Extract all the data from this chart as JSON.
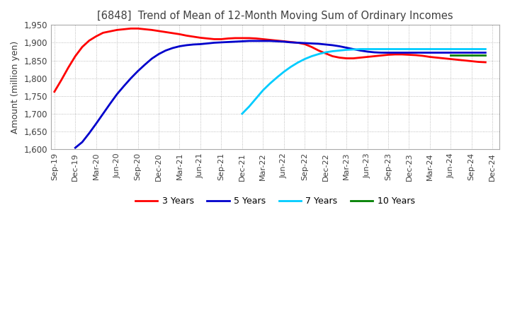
{
  "title": "[6848]  Trend of Mean of 12-Month Moving Sum of Ordinary Incomes",
  "ylabel": "Amount (million yen)",
  "ylim": [
    1600,
    1950
  ],
  "yticks": [
    1600,
    1650,
    1700,
    1750,
    1800,
    1850,
    1900,
    1950
  ],
  "background_color": "#ffffff",
  "grid_color": "#aaaaaa",
  "title_color": "#404040",
  "lines": {
    "3 Years": {
      "color": "#ff0000",
      "data_x": [
        0,
        1,
        2,
        3,
        4,
        5,
        6,
        7,
        8,
        9,
        10,
        11,
        12,
        13,
        14,
        15,
        16,
        17,
        18,
        19,
        20,
        21,
        22,
        23,
        24,
        25,
        26,
        27,
        28,
        29,
        30,
        31,
        32,
        33,
        34,
        35,
        36,
        37,
        38,
        39,
        40,
        41,
        42,
        43,
        44,
        45,
        46,
        47,
        48,
        49,
        50,
        51,
        52,
        53,
        54,
        55,
        56,
        57,
        58,
        59,
        60,
        61,
        62
      ],
      "data_y": [
        1762,
        1795,
        1830,
        1862,
        1888,
        1906,
        1918,
        1928,
        1932,
        1936,
        1938,
        1940,
        1940,
        1938,
        1936,
        1933,
        1930,
        1927,
        1924,
        1920,
        1917,
        1914,
        1912,
        1910,
        1910,
        1912,
        1913,
        1913,
        1913,
        1912,
        1910,
        1908,
        1906,
        1904,
        1902,
        1900,
        1896,
        1888,
        1878,
        1870,
        1862,
        1858,
        1856,
        1856,
        1858,
        1860,
        1862,
        1864,
        1866,
        1867,
        1867,
        1866,
        1865,
        1863,
        1860,
        1858,
        1856,
        1854,
        1852,
        1850,
        1848,
        1846,
        1845
      ]
    },
    "5 Years": {
      "color": "#0000cc",
      "data_x": [
        3,
        4,
        5,
        6,
        7,
        8,
        9,
        10,
        11,
        12,
        13,
        14,
        15,
        16,
        17,
        18,
        19,
        20,
        21,
        22,
        23,
        24,
        25,
        26,
        27,
        28,
        29,
        30,
        31,
        32,
        33,
        34,
        35,
        36,
        37,
        38,
        39,
        40,
        41,
        42,
        43,
        44,
        45,
        46,
        47,
        48,
        49,
        50,
        51,
        52,
        53,
        54,
        55,
        56,
        57,
        58,
        59,
        60,
        61,
        62
      ],
      "data_y": [
        1604,
        1620,
        1645,
        1672,
        1700,
        1728,
        1755,
        1778,
        1800,
        1820,
        1838,
        1855,
        1868,
        1878,
        1885,
        1890,
        1893,
        1895,
        1896,
        1898,
        1900,
        1901,
        1902,
        1903,
        1904,
        1905,
        1905,
        1905,
        1905,
        1904,
        1903,
        1901,
        1900,
        1899,
        1898,
        1897,
        1895,
        1893,
        1890,
        1886,
        1882,
        1878,
        1875,
        1873,
        1872,
        1872,
        1872,
        1872,
        1872,
        1872,
        1872,
        1872,
        1872,
        1872,
        1872,
        1872,
        1872,
        1872,
        1872,
        1872
      ]
    },
    "7 Years": {
      "color": "#00ccff",
      "data_x": [
        27,
        28,
        29,
        30,
        31,
        32,
        33,
        34,
        35,
        36,
        37,
        38,
        39,
        40,
        41,
        42,
        43,
        44,
        45,
        46,
        47,
        48,
        49,
        50,
        51,
        52,
        53,
        54,
        55,
        56,
        57,
        58,
        59,
        60,
        61,
        62
      ],
      "data_y": [
        1700,
        1720,
        1743,
        1766,
        1785,
        1802,
        1818,
        1832,
        1844,
        1854,
        1862,
        1868,
        1873,
        1876,
        1878,
        1880,
        1881,
        1882,
        1882,
        1882,
        1882,
        1882,
        1882,
        1882,
        1882,
        1882,
        1882,
        1882,
        1882,
        1882,
        1882,
        1882,
        1882,
        1882,
        1882,
        1882
      ]
    },
    "10 Years": {
      "color": "#008000",
      "data_x": [
        57,
        58,
        59,
        60,
        61,
        62
      ],
      "data_y": [
        1866,
        1866,
        1866,
        1866,
        1866,
        1866
      ]
    }
  },
  "x_tick_labels": [
    "Sep-19",
    "Dec-19",
    "Mar-20",
    "Jun-20",
    "Sep-20",
    "Dec-20",
    "Mar-21",
    "Jun-21",
    "Sep-21",
    "Dec-21",
    "Mar-22",
    "Jun-22",
    "Sep-22",
    "Dec-22",
    "Mar-23",
    "Jun-23",
    "Sep-23",
    "Dec-23",
    "Mar-24",
    "Jun-24",
    "Sep-24",
    "Dec-24"
  ],
  "x_tick_positions": [
    0,
    3,
    6,
    9,
    12,
    15,
    18,
    21,
    24,
    27,
    30,
    33,
    36,
    39,
    42,
    45,
    48,
    51,
    54,
    57,
    60,
    63
  ],
  "legend_labels": [
    "3 Years",
    "5 Years",
    "7 Years",
    "10 Years"
  ],
  "legend_colors": [
    "#ff0000",
    "#0000cc",
    "#00ccff",
    "#008000"
  ]
}
